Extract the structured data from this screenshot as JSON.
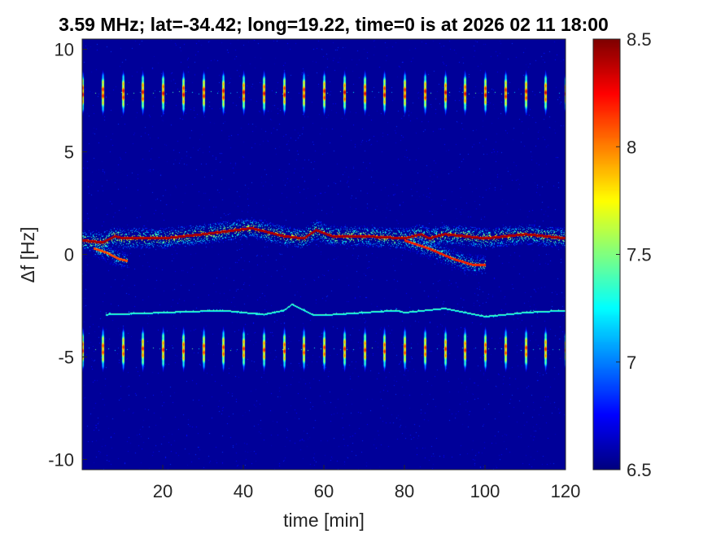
{
  "chart_data": {
    "type": "heatmap",
    "title": "3.59 MHz;  lat=-34.42; long=19.22, time=0 is at 2026 02 11 18:00",
    "xlabel": "time [min]",
    "ylabel": "Δf [Hz]",
    "xlim": [
      0,
      120
    ],
    "ylim": [
      -10.5,
      10.5
    ],
    "xticks": [
      20,
      40,
      60,
      80,
      100,
      120
    ],
    "yticks": [
      10,
      5,
      0,
      -5,
      -10
    ],
    "colorbar": {
      "range": [
        6.5,
        8.5
      ],
      "ticks": [
        8.5,
        8,
        7.5,
        7,
        6.5
      ],
      "colormap": "jet"
    },
    "background_level": 6.55,
    "features": [
      {
        "kind": "pulse-train",
        "center_df": 7.9,
        "half_width_df": 1.1,
        "times": [
          0,
          5,
          10,
          15,
          20,
          25,
          30,
          35,
          40,
          45,
          50,
          55,
          60,
          65,
          70,
          75,
          80,
          85,
          90,
          95,
          100,
          105,
          110,
          115,
          120
        ],
        "peak_level": 8.5
      },
      {
        "kind": "pulse-train",
        "center_df": -4.6,
        "half_width_df": 1.1,
        "times": [
          0,
          5,
          10,
          15,
          20,
          25,
          30,
          35,
          40,
          45,
          50,
          55,
          60,
          65,
          70,
          75,
          80,
          85,
          90,
          95,
          100,
          105,
          110,
          115,
          120
        ],
        "peak_level": 8.4
      },
      {
        "kind": "trace",
        "name": "main",
        "level": 8.5,
        "spread_df": 0.5,
        "t": [
          0,
          5,
          8,
          10,
          15,
          20,
          30,
          38,
          42,
          50,
          55,
          58,
          62,
          70,
          80,
          84,
          86,
          90,
          100,
          110,
          115,
          120
        ],
        "df": [
          0.7,
          0.6,
          0.9,
          0.8,
          0.8,
          0.8,
          1.0,
          1.2,
          1.3,
          0.9,
          0.8,
          1.2,
          0.9,
          0.9,
          0.8,
          1.0,
          0.8,
          1.0,
          0.8,
          1.0,
          0.9,
          0.8
        ]
      },
      {
        "kind": "trace",
        "name": "lower-branch",
        "level": 8.3,
        "spread_df": 0.5,
        "t": [
          80,
          86,
          92,
          97,
          100
        ],
        "df": [
          0.7,
          0.3,
          -0.2,
          -0.5,
          -0.5
        ]
      },
      {
        "kind": "trace",
        "name": "early-branch",
        "level": 8.2,
        "spread_df": 0.5,
        "t": [
          3,
          6,
          9,
          11
        ],
        "df": [
          0.3,
          0.1,
          -0.2,
          -0.3
        ]
      },
      {
        "kind": "trace",
        "name": "faint",
        "level": 7.4,
        "spread_df": 0.1,
        "t": [
          6,
          20,
          35,
          45,
          50,
          52,
          57,
          62,
          70,
          78,
          80,
          90,
          100,
          110,
          120
        ],
        "df": [
          -2.9,
          -2.8,
          -2.7,
          -2.9,
          -2.7,
          -2.4,
          -2.9,
          -2.9,
          -2.8,
          -2.7,
          -2.8,
          -2.6,
          -3.0,
          -2.8,
          -2.7
        ]
      }
    ]
  }
}
